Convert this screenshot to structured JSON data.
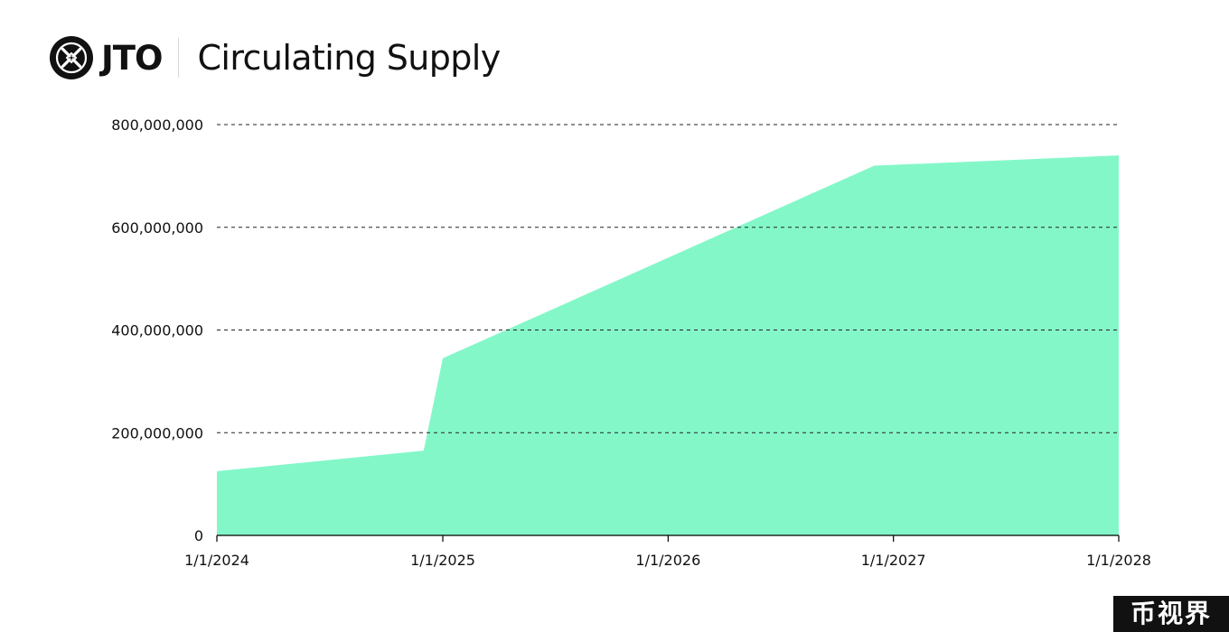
{
  "header": {
    "brand": "JTO",
    "title": "Circulating Supply",
    "logo_icon": "jito-logo-icon"
  },
  "watermark": "币视界",
  "colors": {
    "area_fill": "#84f7c9",
    "axis": "#000000",
    "grid": "#222222",
    "text": "#111111"
  },
  "chart_data": {
    "type": "area",
    "title": "Circulating Supply",
    "xlabel": "",
    "ylabel": "",
    "x": [
      "2024-01-01",
      "2024-12-01",
      "2025-01-01",
      "2026-12-01",
      "2028-01-01"
    ],
    "series": [
      {
        "values": [
          125000000,
          165000000,
          345000000,
          720000000,
          740000000
        ]
      }
    ],
    "xlim": [
      "2024-01-01",
      "2028-01-01"
    ],
    "ylim": [
      0,
      800000000
    ],
    "x_ticks": [
      "1/1/2024",
      "1/1/2025",
      "1/1/2026",
      "1/1/2027",
      "1/1/2028"
    ],
    "y_ticks": [
      "0",
      "200,000,000",
      "400,000,000",
      "600,000,000",
      "800,000,000"
    ],
    "y_tick_values": [
      0,
      200000000,
      400000000,
      600000000,
      800000000
    ],
    "grid": "horizontal-dashed",
    "legend": "none"
  }
}
